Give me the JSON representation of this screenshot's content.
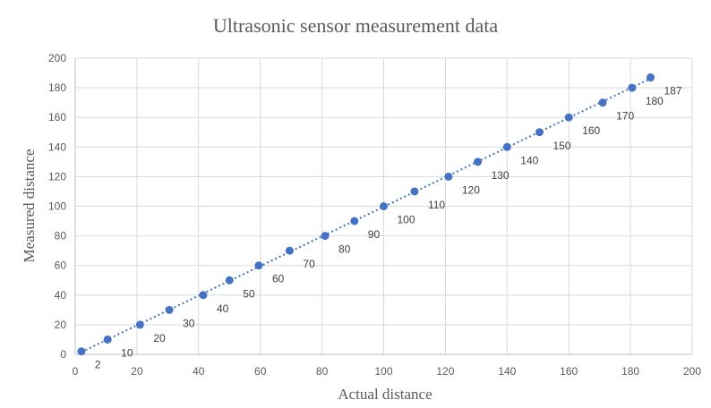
{
  "chart_data": {
    "type": "scatter",
    "title": "Ultrasonic sensor measurement data",
    "xlabel": "Actual distance",
    "ylabel": "Measured distance",
    "xlim": [
      0,
      200
    ],
    "ylim": [
      0,
      200
    ],
    "x_ticks": [
      "0",
      "20",
      "40",
      "60",
      "80",
      "100",
      "120",
      "140",
      "160",
      "180",
      "200"
    ],
    "y_ticks": [
      "0",
      "20",
      "40",
      "60",
      "80",
      "100",
      "120",
      "140",
      "160",
      "180",
      "200"
    ],
    "grid": true,
    "legend": "none",
    "trendline": "linear, dotted",
    "colors": {
      "series": "#4472c4",
      "grid": "#d9d9d9",
      "text": "#595959"
    },
    "series": [
      {
        "points": [
          {
            "x": 2,
            "y": 2,
            "label": "2"
          },
          {
            "x": 10.5,
            "y": 10,
            "label": "10"
          },
          {
            "x": 21,
            "y": 20,
            "label": "20"
          },
          {
            "x": 30.5,
            "y": 30,
            "label": "30"
          },
          {
            "x": 41.5,
            "y": 40,
            "label": "40"
          },
          {
            "x": 50,
            "y": 50,
            "label": "50"
          },
          {
            "x": 59.5,
            "y": 60,
            "label": "60"
          },
          {
            "x": 69.5,
            "y": 70,
            "label": "70"
          },
          {
            "x": 81,
            "y": 80,
            "label": "80"
          },
          {
            "x": 90.5,
            "y": 90,
            "label": "90"
          },
          {
            "x": 100,
            "y": 100,
            "label": "100"
          },
          {
            "x": 110,
            "y": 110,
            "label": "110"
          },
          {
            "x": 121,
            "y": 120,
            "label": "120"
          },
          {
            "x": 130.5,
            "y": 130,
            "label": "130"
          },
          {
            "x": 140,
            "y": 140,
            "label": "140"
          },
          {
            "x": 150.5,
            "y": 150,
            "label": "150"
          },
          {
            "x": 160,
            "y": 160,
            "label": "160"
          },
          {
            "x": 171,
            "y": 170,
            "label": "170"
          },
          {
            "x": 180.5,
            "y": 180,
            "label": "180"
          },
          {
            "x": 186.5,
            "y": 187,
            "label": "187"
          }
        ]
      }
    ]
  }
}
